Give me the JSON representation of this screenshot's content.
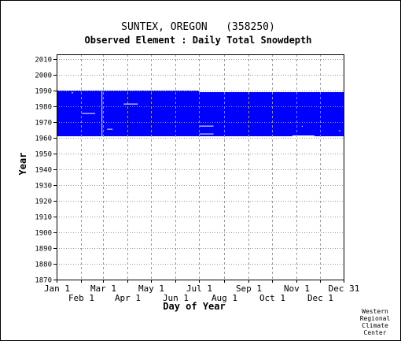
{
  "chart_data": {
    "type": "heatmap",
    "title": "SUNTEX, OREGON   (358250)",
    "subtitle": "Observed Element : Daily Total Snowdepth",
    "xlabel": "Day of Year",
    "ylabel": "Year",
    "ylim": [
      1870,
      2010
    ],
    "y_ticks": [
      1870,
      1880,
      1890,
      1900,
      1910,
      1920,
      1930,
      1940,
      1950,
      1960,
      1970,
      1980,
      1990,
      2000,
      2010
    ],
    "x_ticks_upper": [
      {
        "label": "Jan 1",
        "day": 1
      },
      {
        "label": "Mar 1",
        "day": 60
      },
      {
        "label": "May 1",
        "day": 121
      },
      {
        "label": "Jul 1",
        "day": 182
      },
      {
        "label": "Sep 1",
        "day": 244
      },
      {
        "label": "Nov 1",
        "day": 305
      },
      {
        "label": "Dec 31",
        "day": 365
      }
    ],
    "x_ticks_lower": [
      {
        "label": "Feb 1",
        "day": 32
      },
      {
        "label": "Apr 1",
        "day": 91
      },
      {
        "label": "Jun 1",
        "day": 152
      },
      {
        "label": "Aug 1",
        "day": 213
      },
      {
        "label": "Oct 1",
        "day": 274
      },
      {
        "label": "Dec 1",
        "day": 335
      }
    ],
    "coverage": {
      "color": "#0000ff",
      "blocks": [
        {
          "day_start": 1,
          "day_end": 182,
          "year_start": 1961,
          "year_end": 1990
        },
        {
          "day_start": 182,
          "day_end": 365,
          "year_start": 1961,
          "year_end": 1989
        }
      ]
    },
    "gaps": [
      {
        "day_start": 20,
        "day_end": 22,
        "year_start": 1988.4,
        "year_end": 1988.8
      },
      {
        "day_start": 33,
        "day_end": 50,
        "year_start": 1975.3,
        "year_end": 1975.7
      },
      {
        "day_start": 58,
        "day_end": 59,
        "year_start": 1961,
        "year_end": 1990
      },
      {
        "day_start": 65,
        "day_end": 72,
        "year_start": 1965.3,
        "year_end": 1965.7
      },
      {
        "day_start": 86,
        "day_end": 104,
        "year_start": 1981.3,
        "year_end": 1981.7
      },
      {
        "day_start": 182,
        "day_end": 200,
        "year_start": 1967.3,
        "year_end": 1967.7
      },
      {
        "day_start": 182,
        "day_end": 200,
        "year_start": 1962.3,
        "year_end": 1962.7
      },
      {
        "day_start": 300,
        "day_end": 328,
        "year_start": 1961,
        "year_end": 1961.5
      },
      {
        "day_start": 312,
        "day_end": 313,
        "year_start": 1967,
        "year_end": 1967.6
      },
      {
        "day_start": 359,
        "day_end": 361,
        "year_start": 1964.3,
        "year_end": 1964.7
      }
    ],
    "grid": true
  },
  "credit": [
    "Western",
    "Regional",
    "Climate",
    "Center"
  ]
}
